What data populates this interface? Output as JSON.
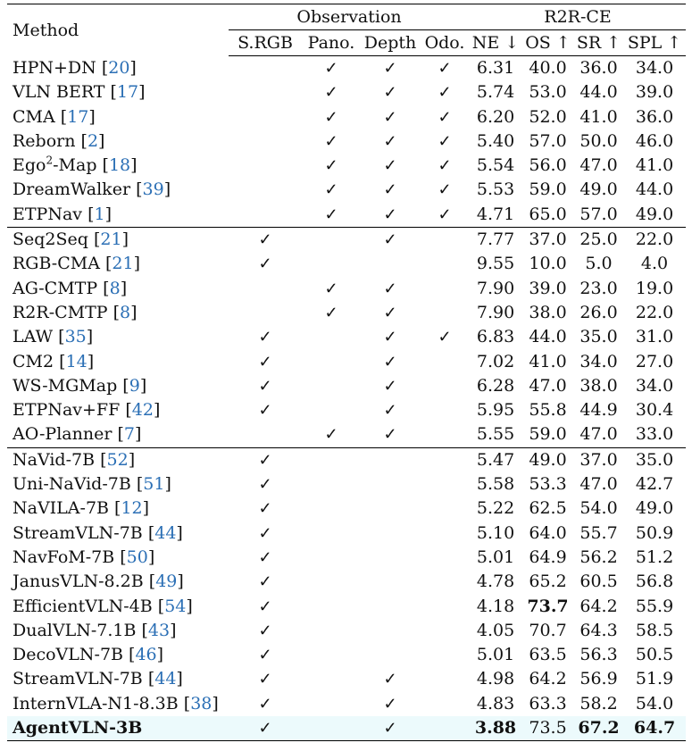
{
  "header": {
    "method": "Method",
    "observation": "Observation",
    "benchmark": "R2R-CE",
    "columns": [
      "S.RGB",
      "Pano.",
      "Depth",
      "Odo.",
      "NE ↓",
      "OS ↑",
      "SR ↑",
      "SPL ↑"
    ]
  },
  "check_symbol": "✓",
  "rows": [
    {
      "name": "HPN+DN",
      "ref": "20",
      "obs": [
        "",
        "✓",
        "✓",
        "✓"
      ],
      "vals": [
        "6.31",
        "40.0",
        "36.0",
        "34.0"
      ]
    },
    {
      "name": "VLN BERT",
      "ref": "17",
      "obs": [
        "",
        "✓",
        "✓",
        "✓"
      ],
      "vals": [
        "5.74",
        "53.0",
        "44.0",
        "39.0"
      ]
    },
    {
      "name": "CMA",
      "ref": "17",
      "obs": [
        "",
        "✓",
        "✓",
        "✓"
      ],
      "vals": [
        "6.20",
        "52.0",
        "41.0",
        "36.0"
      ]
    },
    {
      "name": "Reborn",
      "ref": "2",
      "obs": [
        "",
        "✓",
        "✓",
        "✓"
      ],
      "vals": [
        "5.40",
        "57.0",
        "50.0",
        "46.0"
      ]
    },
    {
      "name": "Ego",
      "sup": "2",
      "name_suffix": "-Map",
      "ref": "18",
      "obs": [
        "",
        "✓",
        "✓",
        "✓"
      ],
      "vals": [
        "5.54",
        "56.0",
        "47.0",
        "41.0"
      ]
    },
    {
      "name": "DreamWalker",
      "ref": "39",
      "obs": [
        "",
        "✓",
        "✓",
        "✓"
      ],
      "vals": [
        "5.53",
        "59.0",
        "49.0",
        "44.0"
      ]
    },
    {
      "name": "ETPNav",
      "ref": "1",
      "obs": [
        "",
        "✓",
        "✓",
        "✓"
      ],
      "vals": [
        "4.71",
        "65.0",
        "57.0",
        "49.0"
      ]
    },
    {
      "name": "Seq2Seq",
      "ref": "21",
      "section": true,
      "obs": [
        "✓",
        "",
        "✓",
        ""
      ],
      "vals": [
        "7.77",
        "37.0",
        "25.0",
        "22.0"
      ]
    },
    {
      "name": "RGB-CMA",
      "ref": "21",
      "obs": [
        "✓",
        "",
        "",
        ""
      ],
      "vals": [
        "9.55",
        "10.0",
        "5.0",
        "4.0"
      ]
    },
    {
      "name": "AG-CMTP",
      "ref": "8",
      "obs": [
        "",
        "✓",
        "✓",
        ""
      ],
      "vals": [
        "7.90",
        "39.0",
        "23.0",
        "19.0"
      ]
    },
    {
      "name": "R2R-CMTP",
      "ref": "8",
      "obs": [
        "",
        "✓",
        "✓",
        ""
      ],
      "vals": [
        "7.90",
        "38.0",
        "26.0",
        "22.0"
      ]
    },
    {
      "name": "LAW",
      "ref": "35",
      "obs": [
        "✓",
        "",
        "✓",
        "✓"
      ],
      "vals": [
        "6.83",
        "44.0",
        "35.0",
        "31.0"
      ]
    },
    {
      "name": "CM2",
      "ref": "14",
      "obs": [
        "✓",
        "",
        "✓",
        ""
      ],
      "vals": [
        "7.02",
        "41.0",
        "34.0",
        "27.0"
      ]
    },
    {
      "name": "WS-MGMap",
      "ref": "9",
      "obs": [
        "✓",
        "",
        "✓",
        ""
      ],
      "vals": [
        "6.28",
        "47.0",
        "38.0",
        "34.0"
      ]
    },
    {
      "name": "ETPNav+FF",
      "ref": "42",
      "obs": [
        "✓",
        "",
        "✓",
        ""
      ],
      "vals": [
        "5.95",
        "55.8",
        "44.9",
        "30.4"
      ]
    },
    {
      "name": "AO-Planner",
      "ref": "7",
      "obs": [
        "",
        "✓",
        "✓",
        ""
      ],
      "vals": [
        "5.55",
        "59.0",
        "47.0",
        "33.0"
      ]
    },
    {
      "name": "NaVid-7B",
      "ref": "52",
      "section": true,
      "obs": [
        "✓",
        "",
        "",
        ""
      ],
      "vals": [
        "5.47",
        "49.0",
        "37.0",
        "35.0"
      ]
    },
    {
      "name": "Uni-NaVid-7B",
      "ref": "51",
      "obs": [
        "✓",
        "",
        "",
        ""
      ],
      "vals": [
        "5.58",
        "53.3",
        "47.0",
        "42.7"
      ]
    },
    {
      "name": "NaVILA-7B",
      "ref": "12",
      "obs": [
        "✓",
        "",
        "",
        ""
      ],
      "vals": [
        "5.22",
        "62.5",
        "54.0",
        "49.0"
      ]
    },
    {
      "name": "StreamVLN-7B",
      "ref": "44",
      "obs": [
        "✓",
        "",
        "",
        ""
      ],
      "vals": [
        "5.10",
        "64.0",
        "55.7",
        "50.9"
      ]
    },
    {
      "name": "NavFoM-7B",
      "ref": "50",
      "obs": [
        "✓",
        "",
        "",
        ""
      ],
      "vals": [
        "5.01",
        "64.9",
        "56.2",
        "51.2"
      ]
    },
    {
      "name": "JanusVLN-8.2B",
      "ref": "49",
      "obs": [
        "✓",
        "",
        "",
        ""
      ],
      "vals": [
        "4.78",
        "65.2",
        "60.5",
        "56.8"
      ]
    },
    {
      "name": "EfficientVLN-4B",
      "ref": "54",
      "obs": [
        "✓",
        "",
        "",
        ""
      ],
      "vals": [
        "4.18",
        "73.7",
        "64.2",
        "55.9"
      ],
      "bold_vals": [
        1
      ]
    },
    {
      "name": "DualVLN-7.1B",
      "ref": "43",
      "obs": [
        "✓",
        "",
        "",
        ""
      ],
      "vals": [
        "4.05",
        "70.7",
        "64.3",
        "58.5"
      ]
    },
    {
      "name": "DecoVLN-7B",
      "ref": "46",
      "obs": [
        "✓",
        "",
        "",
        ""
      ],
      "vals": [
        "5.01",
        "63.5",
        "56.3",
        "50.5"
      ]
    },
    {
      "name": "StreamVLN-7B",
      "ref": "44",
      "obs": [
        "✓",
        "",
        "✓",
        ""
      ],
      "vals": [
        "4.98",
        "64.2",
        "56.9",
        "51.9"
      ]
    },
    {
      "name": "InternVLA-N1-8.3B",
      "ref": "38",
      "obs": [
        "✓",
        "",
        "✓",
        ""
      ],
      "vals": [
        "4.83",
        "63.3",
        "58.2",
        "54.0"
      ]
    },
    {
      "name": "AgentVLN-3B",
      "ref": "",
      "highlight": true,
      "obs": [
        "✓",
        "",
        "✓",
        ""
      ],
      "vals": [
        "3.88",
        "73.5",
        "67.2",
        "64.7"
      ],
      "bold_vals": [
        0,
        2,
        3
      ]
    }
  ]
}
